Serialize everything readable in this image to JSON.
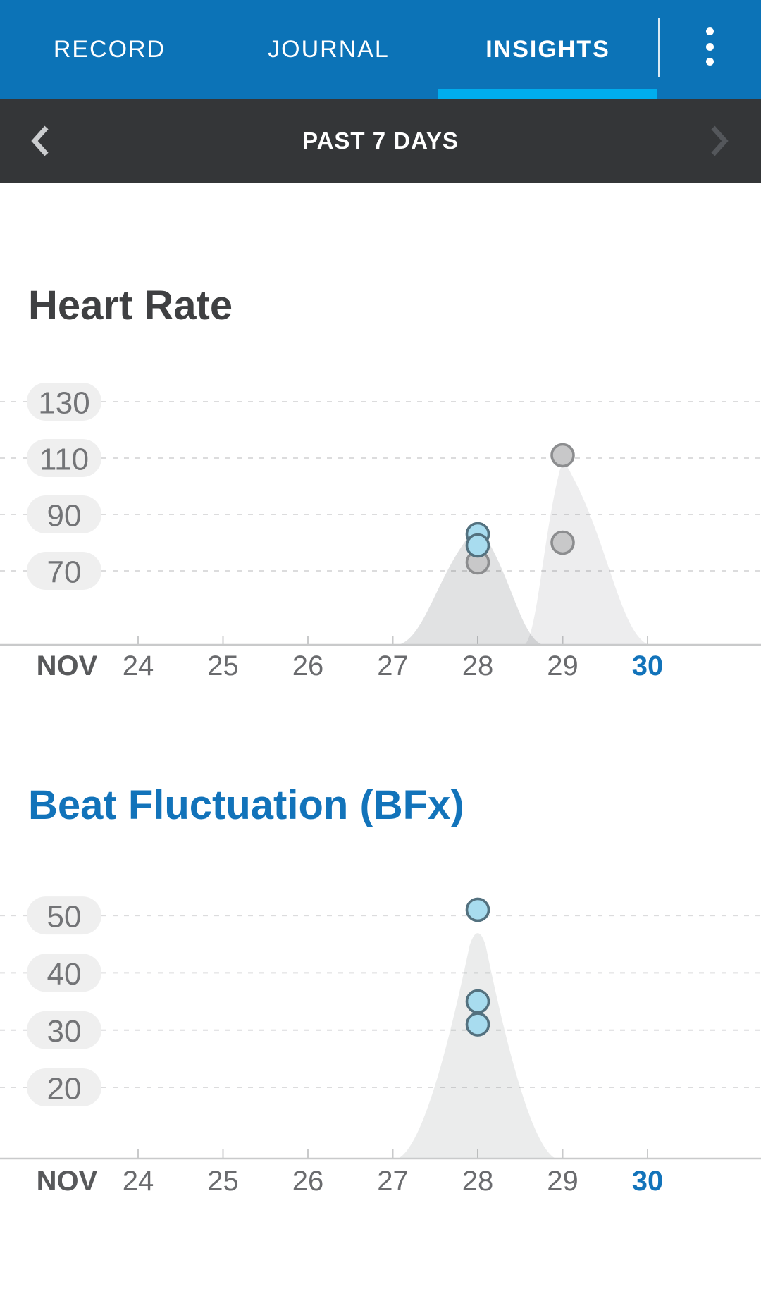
{
  "header": {
    "tabs": [
      {
        "label": "RECORD",
        "active": false
      },
      {
        "label": "JOURNAL",
        "active": false
      },
      {
        "label": "INSIGHTS",
        "active": true
      }
    ],
    "bar_color": "#0c73b7",
    "active_underline_color": "#00adee"
  },
  "period_bar": {
    "label": "PAST 7 DAYS",
    "background": "#343638"
  },
  "chart_data": [
    {
      "type": "scatter",
      "title": "Heart Rate",
      "y_ticks": [
        130,
        110,
        90,
        70
      ],
      "ylim": [
        55,
        140
      ],
      "grid": true,
      "legend_position": "none",
      "x_axis": {
        "month": "NOV",
        "days": [
          24,
          25,
          26,
          27,
          28,
          29,
          30
        ],
        "highlighted_day": 30
      },
      "points": [
        {
          "day": 28,
          "value": 73,
          "kind": "normal"
        },
        {
          "day": 28,
          "value": 83,
          "kind": "highlighted"
        },
        {
          "day": 28,
          "value": 79,
          "kind": "highlighted"
        },
        {
          "day": 29,
          "value": 111,
          "kind": "normal"
        },
        {
          "day": 29,
          "value": 80,
          "kind": "normal"
        }
      ],
      "densities": [
        {
          "day": 29,
          "peak_value": 111,
          "left_days": 0.45,
          "right_days": 1.02,
          "opacity": 0.085
        },
        {
          "day": 28,
          "peak_value": 87,
          "left_days": 0.94,
          "right_days": 0.77,
          "opacity": 0.14
        }
      ]
    },
    {
      "type": "scatter",
      "title": "Beat Fluctuation (BFx)",
      "y_ticks": [
        50,
        40,
        30,
        20
      ],
      "ylim": [
        13,
        57
      ],
      "grid": true,
      "legend_position": "none",
      "x_axis": {
        "month": "NOV",
        "days": [
          24,
          25,
          26,
          27,
          28,
          29,
          30
        ],
        "highlighted_day": 30
      },
      "points": [
        {
          "day": 28,
          "value": 31,
          "kind": "highlighted"
        },
        {
          "day": 28,
          "value": 35,
          "kind": "highlighted"
        },
        {
          "day": 28,
          "value": 51,
          "kind": "highlighted"
        }
      ],
      "densities": [
        {
          "day": 28,
          "peak_value": 49,
          "left_days": 0.94,
          "right_days": 0.92,
          "opacity": 0.095
        }
      ]
    }
  ],
  "colors": {
    "accent_blue": "#1273ba",
    "highlight_cyan": "#00adee",
    "title_dark": "#3f4042",
    "point_highlighted_fill": "#a8dcef",
    "point_highlighted_stroke": "#53717f",
    "point_normal_fill": "#c8c8c9",
    "point_normal_stroke": "#8c8d8f",
    "density_gray": "#e9e9ea"
  }
}
